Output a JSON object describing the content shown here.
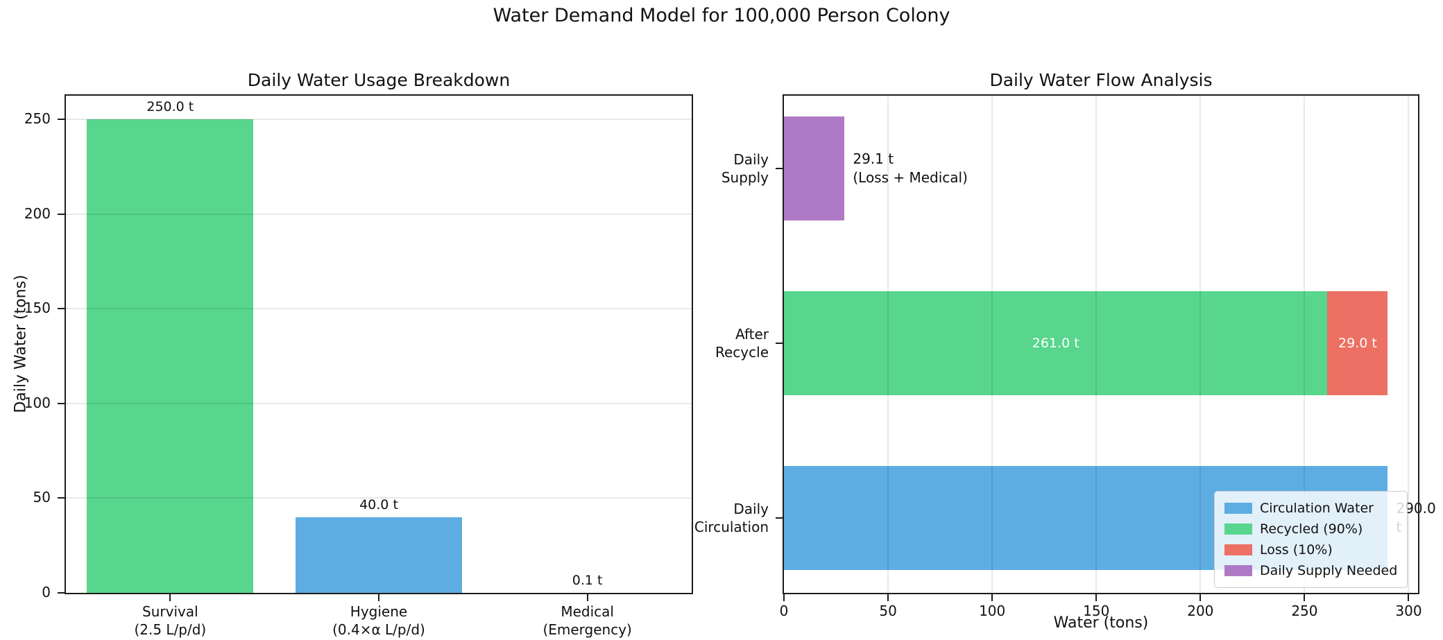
{
  "figure": {
    "suptitle": "Water Demand Model for 100,000 Person Colony"
  },
  "colors": {
    "blue": "#5DADE2",
    "green": "#58D68D",
    "red": "#EC7063",
    "purple": "#AF7AC5",
    "spine": "#1c1c1c",
    "grid": "rgba(0,0,0,0.09)",
    "inside_bar_text": "#ffffff"
  },
  "chart_data": [
    {
      "type": "bar",
      "title": "Daily Water Usage Breakdown",
      "ylabel": "Daily Water (tons)",
      "categories": [
        "Survival\n(2.5 L/p/d)",
        "Hygiene\n(0.4×α L/p/d)",
        "Medical\n(Emergency)"
      ],
      "values": [
        250.0,
        40.0,
        0.1
      ],
      "bar_labels": [
        "250.0 t",
        "40.0 t",
        "0.1 t"
      ],
      "bar_colors": [
        "#58D68D",
        "#5DADE2",
        "#EC7063"
      ],
      "yticks": [
        0,
        50,
        100,
        150,
        200,
        250
      ],
      "ylim": [
        0,
        262.5
      ],
      "grid": "horizontal"
    },
    {
      "type": "barh-stacked",
      "title": "Daily Water Flow Analysis",
      "xlabel": "Water (tons)",
      "xticks": [
        0,
        50,
        100,
        150,
        200,
        250,
        300
      ],
      "xlim": [
        0,
        304.5
      ],
      "grid": "vertical",
      "rows": [
        {
          "label": "Daily\nSupply",
          "segments": [
            {
              "name": "Daily Supply Needed",
              "value": 29.1,
              "color": "#AF7AC5"
            }
          ],
          "annotation": "29.1 t\n(Loss + Medical)"
        },
        {
          "label": "After\nRecycle",
          "segments": [
            {
              "name": "Recycled (90%)",
              "value": 261.0,
              "color": "#58D68D",
              "label": "261.0 t"
            },
            {
              "name": "Loss (10%)",
              "value": 29.0,
              "color": "#EC7063",
              "label": "29.0 t"
            }
          ]
        },
        {
          "label": "Daily\nCirculation",
          "segments": [
            {
              "name": "Circulation Water",
              "value": 290.0,
              "color": "#5DADE2"
            }
          ],
          "annotation": "290.0 t"
        }
      ],
      "legend": {
        "position": "lower right",
        "items": [
          {
            "label": "Circulation Water",
            "color": "#5DADE2"
          },
          {
            "label": "Recycled (90%)",
            "color": "#58D68D"
          },
          {
            "label": "Loss (10%)",
            "color": "#EC7063"
          },
          {
            "label": "Daily Supply Needed",
            "color": "#AF7AC5"
          }
        ]
      }
    }
  ]
}
